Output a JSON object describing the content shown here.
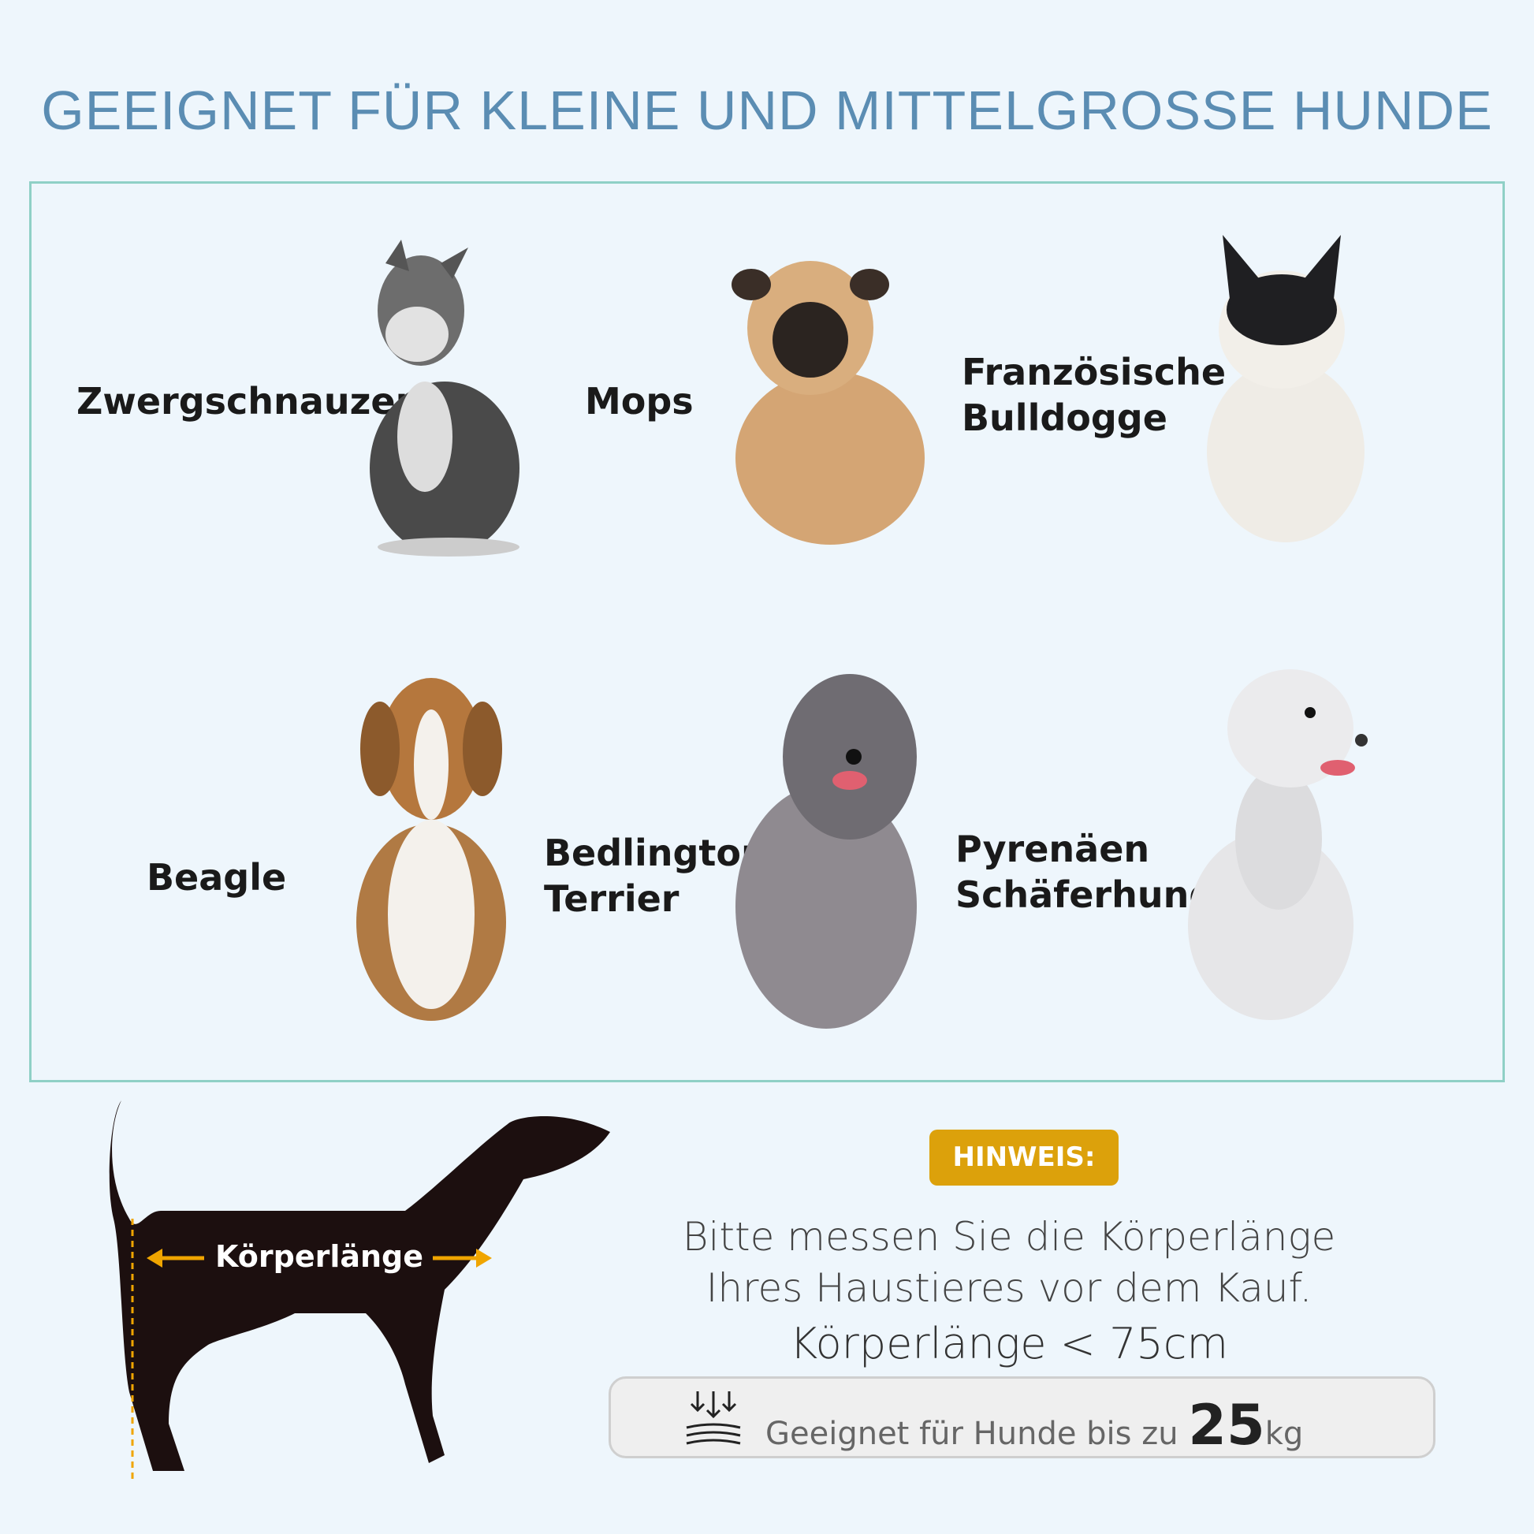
{
  "title": "GEEIGNET FÜR KLEINE UND MITTELGROSSE HUNDE",
  "breeds": [
    {
      "name": "Zwergschnauzer"
    },
    {
      "name": "Mops"
    },
    {
      "name_line1": "Französische",
      "name_line2": "Bulldogge"
    },
    {
      "name": "Beagle"
    },
    {
      "name_line1": "Bedlington",
      "name_line2": "Terrier"
    },
    {
      "name_line1": "Pyrenäen",
      "name_line2": "Schäferhund"
    }
  ],
  "diagram": {
    "label": "Körperlänge",
    "arrow_color": "#f0a500"
  },
  "notice": {
    "badge": "HINWEIS:",
    "line1": "Bitte messen Sie die Körperlänge",
    "line2": "Ihres Haustieres vor dem Kauf.",
    "limit": "Körperlänge < 75cm",
    "weight_text": "Geeignet für Hunde bis zu",
    "weight_value": "25",
    "weight_unit": "kg",
    "weight_icon": "load-weight-icon"
  },
  "colors": {
    "title": "#5b8db3",
    "badge": "#dca10b",
    "border": "#8fd0c6",
    "background": "#eef6fc"
  }
}
